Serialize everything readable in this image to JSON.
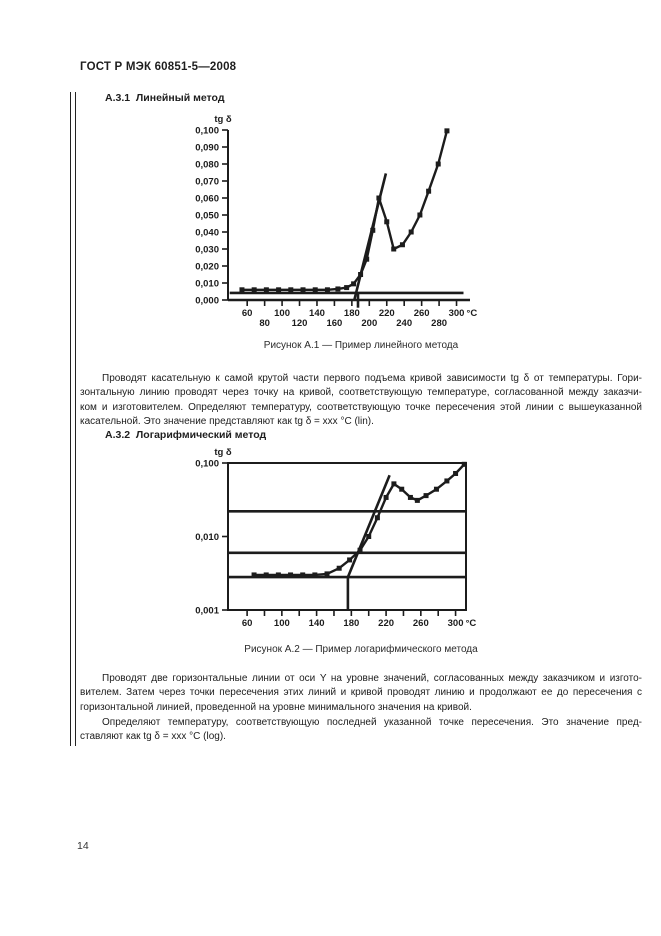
{
  "page": {
    "header": "ГОСТ Р МЭК 60851-5—2008",
    "page_number": "14"
  },
  "section_a31": {
    "heading": "А.3.1  Линейный метод",
    "figure_caption": "Рисунок А.1 — Пример линейного метода",
    "paragraph_lines": [
      "Проводят касательную к самой крутой части первого подъема кривой зависимости tg δ от температуры. Гори-",
      "зонтальную линию проводят через точку на кривой, соответствующую температуре, согласованной между заказчи-",
      "ком и изготовителем. Определяют температуру, соответствующую точке пересечения этой линии с вышеуказанной",
      "касательной. Это значение представляют как tg δ  =  xxx  °С (lin)."
    ]
  },
  "section_a32": {
    "heading": "А.3.2  Логарифмический метод",
    "figure_caption": "Рисунок А.2 — Пример логарифмического метода",
    "paragraph1_lines": [
      "Проводят две горизонтальные линии от оси Y на уровне значений, согласованных между заказчиком и изгото-",
      "вителем. Затем через точки пересечения этих линий и кривой проводят линию и продолжают ее до пересечения с",
      "горизонтальной линией, проведенной на уровне минимального значения на кривой."
    ],
    "paragraph2_lines": [
      "Определяют температуру, соответствующую последней указанной точке пересечения. Это значение пред-",
      "ставляют как tg δ  =  xxx  °С (log)."
    ]
  },
  "chart_data": [
    {
      "type": "line",
      "title": "Пример линейного метода",
      "ylabel": "tg δ",
      "x_unit": "°С",
      "y_scale": "linear",
      "ylim": [
        0,
        0.1
      ],
      "xlim": [
        38,
        312
      ],
      "grid": false,
      "legend": "none",
      "framed": false,
      "y_ticks": [
        0,
        0.01,
        0.02,
        0.03,
        0.04,
        0.05,
        0.06,
        0.07,
        0.08,
        0.09,
        0.1
      ],
      "y_tick_labels": [
        "0,000",
        "0,010",
        "0,020",
        "0,030",
        "0,040",
        "0,050",
        "0,060",
        "0,070",
        "0,080",
        "0,090",
        "0,100"
      ],
      "x_ticks": [
        60,
        80,
        100,
        120,
        140,
        160,
        180,
        200,
        220,
        240,
        260,
        280,
        300
      ],
      "x_tick_label_style": "staggered",
      "series": [
        {
          "name": "tg-delta-curve",
          "marker": "square",
          "points": [
            [
              54,
              0.006
            ],
            [
              68,
              0.006
            ],
            [
              82,
              0.006
            ],
            [
              96,
              0.006
            ],
            [
              110,
              0.006
            ],
            [
              124,
              0.006
            ],
            [
              138,
              0.006
            ],
            [
              152,
              0.006
            ],
            [
              164,
              0.0065
            ],
            [
              174,
              0.0073
            ],
            [
              182,
              0.0095
            ],
            [
              190,
              0.015
            ],
            [
              197,
              0.024
            ],
            [
              204,
              0.041
            ],
            [
              211,
              0.06
            ],
            [
              220,
              0.046
            ],
            [
              228,
              0.03
            ],
            [
              238,
              0.0325
            ],
            [
              248,
              0.04
            ],
            [
              258,
              0.05
            ],
            [
              268,
              0.064
            ],
            [
              279,
              0.08
            ],
            [
              289,
              0.0995
            ]
          ]
        }
      ],
      "construction_lines": [
        {
          "name": "tangent-line",
          "points": [
            [
              183,
              0.0005
            ],
            [
              219,
              0.0745
            ]
          ]
        },
        {
          "name": "agreed-level-horizontal-line",
          "points": [
            [
              40,
              0.0042
            ],
            [
              308,
              0.0042
            ]
          ]
        },
        {
          "name": "intersection-vertical-marker",
          "points": [
            [
              187,
              0.0042
            ],
            [
              187,
              -0.0045
            ]
          ]
        }
      ]
    },
    {
      "type": "line",
      "title": "Пример логарифмического метода",
      "ylabel": "tg δ",
      "x_unit": "°С",
      "y_scale": "log",
      "ylim": [
        0.001,
        0.1
      ],
      "xlim": [
        38,
        312
      ],
      "grid": false,
      "legend": "none",
      "framed": true,
      "y_ticks": [
        0.001,
        0.01,
        0.1
      ],
      "y_tick_labels": [
        "0,001",
        "0,010",
        "0,100"
      ],
      "x_ticks": [
        60,
        80,
        100,
        120,
        140,
        160,
        180,
        200,
        220,
        240,
        260,
        280,
        300
      ],
      "x_label_every": 2,
      "series": [
        {
          "name": "tg-delta-curve",
          "marker": "square",
          "points": [
            [
              68,
              0.003
            ],
            [
              82,
              0.003
            ],
            [
              96,
              0.003
            ],
            [
              110,
              0.003
            ],
            [
              124,
              0.003
            ],
            [
              138,
              0.003
            ],
            [
              152,
              0.0031
            ],
            [
              166,
              0.0037
            ],
            [
              178,
              0.0048
            ],
            [
              190,
              0.0065
            ],
            [
              200,
              0.01
            ],
            [
              210,
              0.018
            ],
            [
              220,
              0.034
            ],
            [
              229,
              0.052
            ],
            [
              238,
              0.044
            ],
            [
              248,
              0.034
            ],
            [
              256,
              0.031
            ],
            [
              266,
              0.036
            ],
            [
              278,
              0.044
            ],
            [
              290,
              0.057
            ],
            [
              300,
              0.072
            ],
            [
              310,
              0.096
            ]
          ]
        }
      ],
      "construction_lines": [
        {
          "name": "upper-agreed-level-line",
          "points": [
            [
              38,
              0.022
            ],
            [
              312,
              0.022
            ]
          ]
        },
        {
          "name": "lower-agreed-level-line",
          "points": [
            [
              38,
              0.006
            ],
            [
              312,
              0.006
            ]
          ]
        },
        {
          "name": "minimum-level-line",
          "points": [
            [
              38,
              0.0028
            ],
            [
              312,
              0.0028
            ]
          ]
        },
        {
          "name": "through-intersections-line",
          "points": [
            [
              176,
              0.0028
            ],
            [
              224,
              0.068
            ]
          ]
        },
        {
          "name": "temperature-vertical-line",
          "points": [
            [
              176,
              0.001
            ],
            [
              176,
              0.0028
            ]
          ]
        }
      ]
    }
  ]
}
